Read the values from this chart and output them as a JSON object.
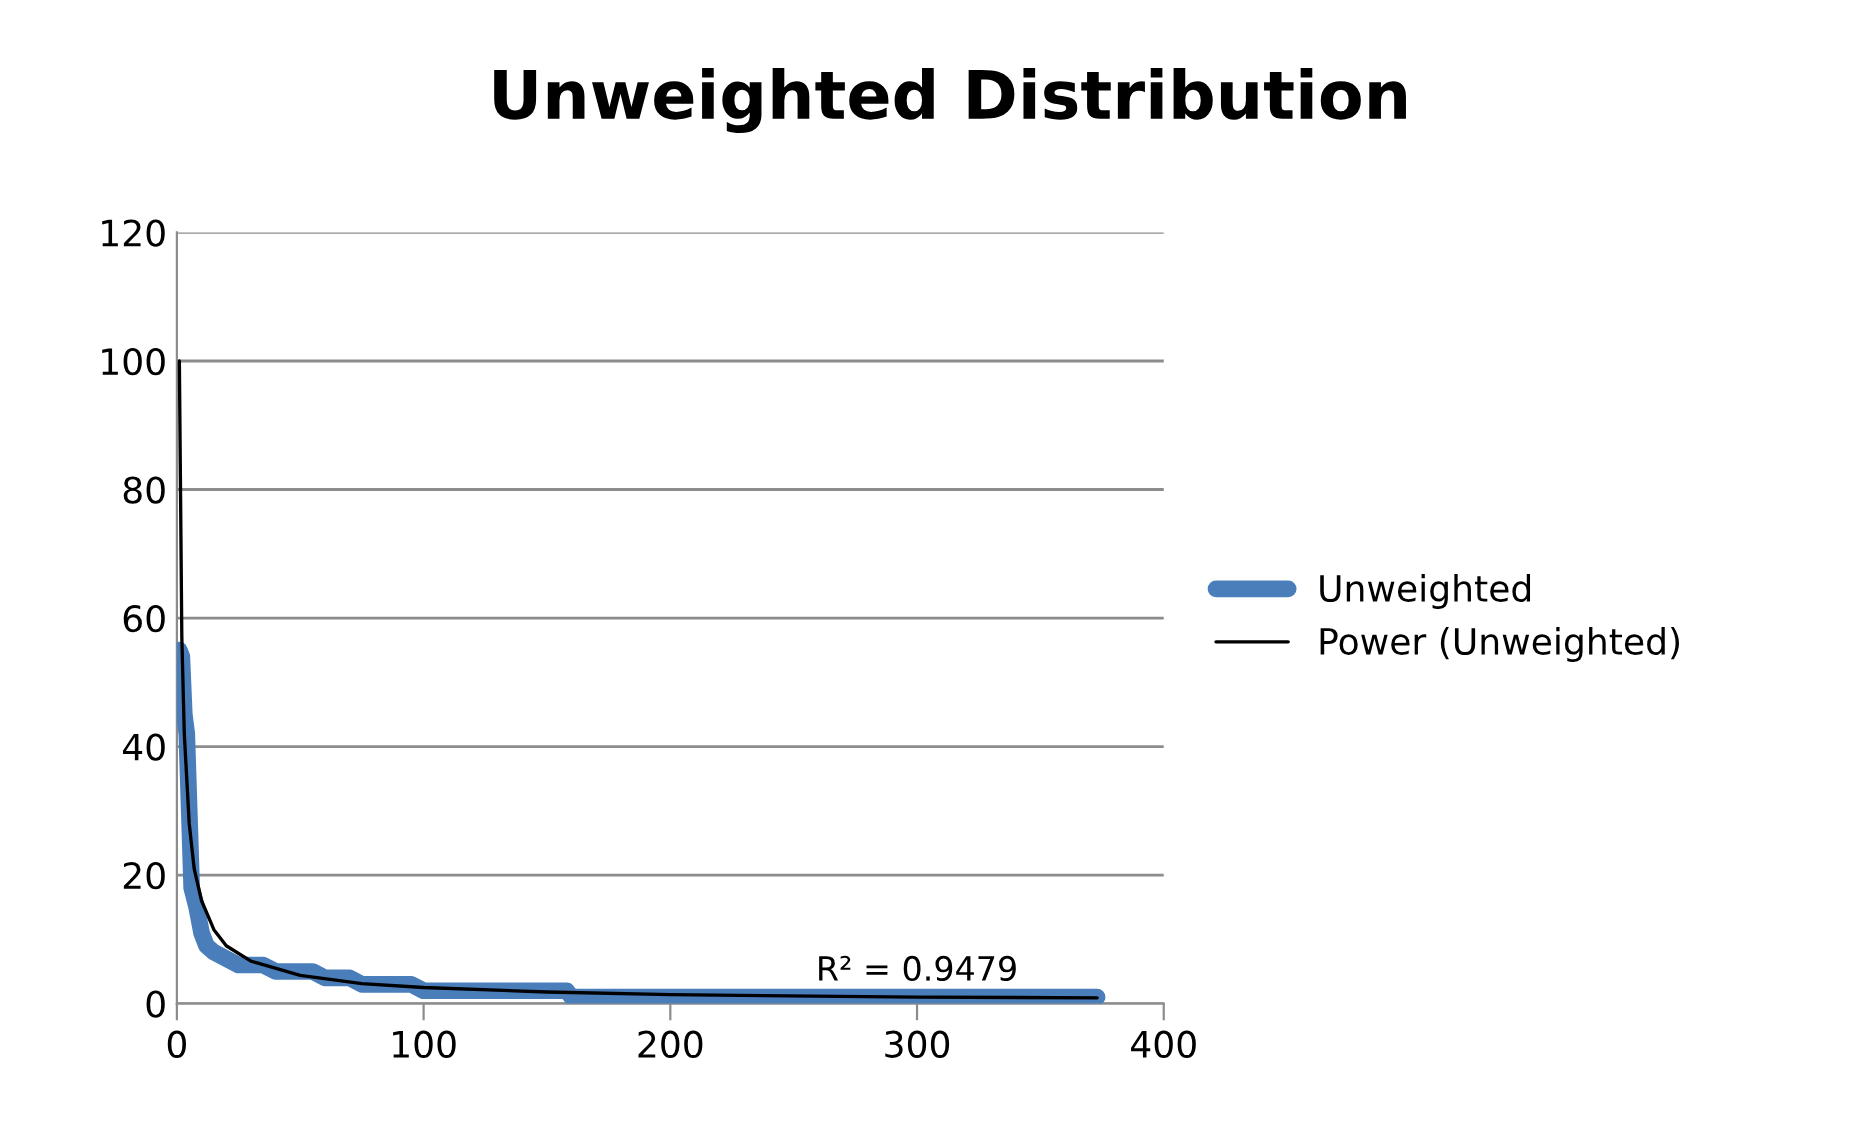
{
  "chart_data": {
    "type": "line",
    "title": "Unweighted Distribution",
    "series": [
      {
        "name": "Unweighted",
        "color": "#4a7ebb",
        "x": [
          1,
          2,
          3,
          4,
          5,
          6,
          8,
          10,
          12,
          15,
          20,
          25,
          35,
          40,
          55,
          60,
          70,
          75,
          95,
          100,
          158,
          160,
          373
        ],
        "values": [
          55,
          54,
          45,
          42,
          30,
          18,
          15,
          11,
          9,
          8,
          7,
          6,
          6,
          5,
          5,
          4,
          4,
          3,
          3,
          2,
          2,
          1,
          1
        ]
      },
      {
        "name": "Power (Unweighted)",
        "type": "line",
        "color": "#000000",
        "x": [
          1,
          2,
          3,
          5,
          7,
          10,
          15,
          20,
          30,
          50,
          75,
          100,
          150,
          200,
          300,
          373
        ],
        "values": [
          100,
          57,
          42,
          28,
          21,
          16,
          11.5,
          9,
          6.6,
          4.4,
          3.1,
          2.5,
          1.8,
          1.4,
          1.0,
          0.9
        ]
      }
    ],
    "xlim": [
      0,
      400
    ],
    "xticks": [
      0,
      100,
      200,
      300,
      400
    ],
    "ylim": [
      0,
      120
    ],
    "yticks": [
      0,
      20,
      40,
      60,
      80,
      100,
      120
    ],
    "grid": "y",
    "legend": "right",
    "annotations": [
      {
        "text": "R² = 0.9479",
        "x": 300,
        "y": 1
      }
    ]
  }
}
